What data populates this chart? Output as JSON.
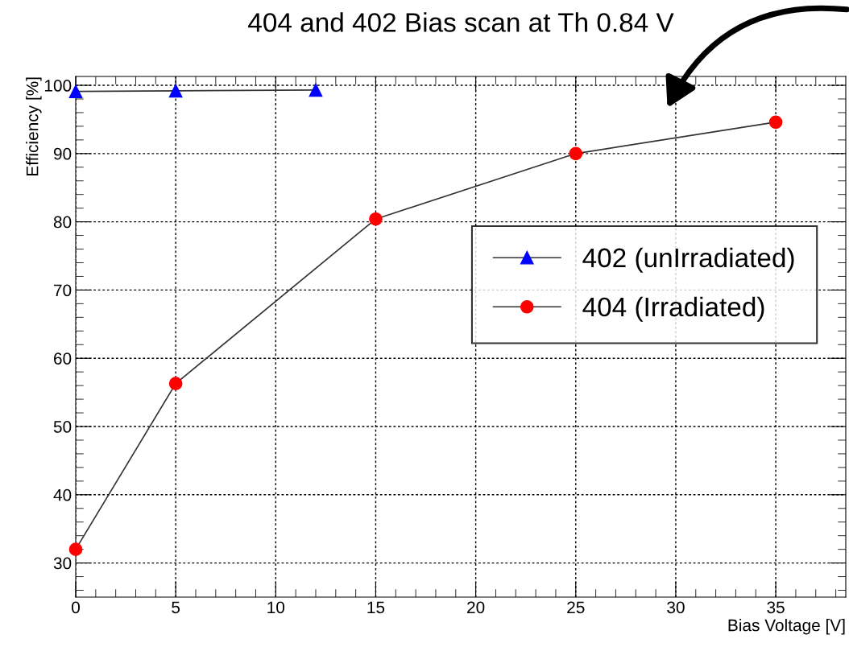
{
  "chart_data": {
    "type": "line",
    "title": "404 and 402 Bias scan at Th 0.84 V",
    "xlabel": "Bias Voltage [V]",
    "ylabel": "Efficiency [%]",
    "series": [
      {
        "name": "402 (unIrradiated)",
        "color": "#0000ff",
        "marker": "triangle",
        "x": [
          0,
          5,
          12
        ],
        "values": [
          99.1,
          99.2,
          99.3
        ]
      },
      {
        "name": "404 (Irradiated)",
        "color": "#ff0000",
        "marker": "circle",
        "x": [
          0,
          5,
          15,
          25,
          35
        ],
        "values": [
          32.0,
          56.3,
          80.4,
          90.0,
          94.6
        ]
      }
    ],
    "xlim": [
      0,
      38.5
    ],
    "xticks": [
      0,
      5,
      10,
      15,
      20,
      25,
      30,
      35
    ],
    "ylim": [
      25,
      101.3
    ],
    "yticks": [
      30,
      40,
      50,
      60,
      70,
      80,
      90,
      100
    ],
    "grid": true,
    "legend": "right",
    "line_style": "solid"
  }
}
